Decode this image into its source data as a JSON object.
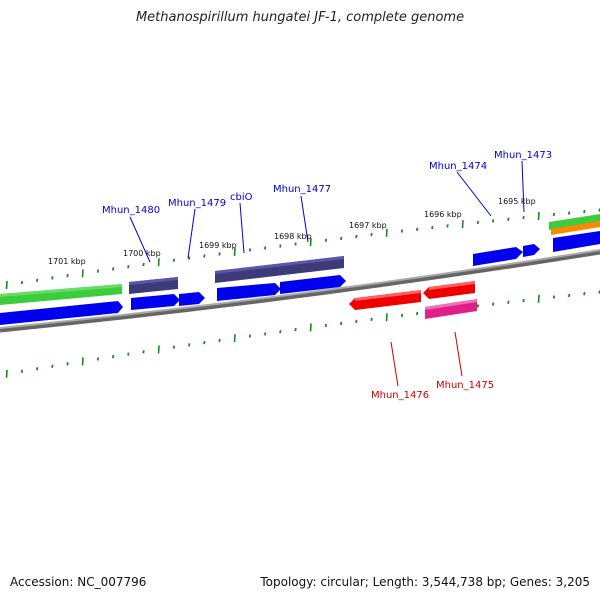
{
  "title": "Methanospirillum hungatei JF-1, complete genome",
  "footer": {
    "accession": "Accession: NC_007796",
    "summary": "Topology: circular; Length: 3,544,738 bp; Genes: 3,205"
  },
  "kbp_labels": [
    "1701 kbp",
    "1700 kbp",
    "1699 kbp",
    "1698 kbp",
    "1697 kbp",
    "1696 kbp",
    "1695 kbp"
  ],
  "gene_labels": {
    "forward": [
      "Mhun_1480",
      "Mhun_1479",
      "cbiO",
      "Mhun_1477",
      "Mhun_1474",
      "Mhun_1473"
    ],
    "reverse": [
      "Mhun_1476",
      "Mhun_1475"
    ]
  },
  "colors": {
    "forward_cds": "#0000ee",
    "forward_rna": "#3d3a7a",
    "reverse_cds": "#ee0000",
    "reverse_pink": "#e0208a",
    "green_track": "#33cc33",
    "orange_track": "#ff8800",
    "backbone": "#888888",
    "ticks": "#1a8a1a",
    "forward_label": "#0000cc",
    "reverse_label": "#cc0000"
  }
}
